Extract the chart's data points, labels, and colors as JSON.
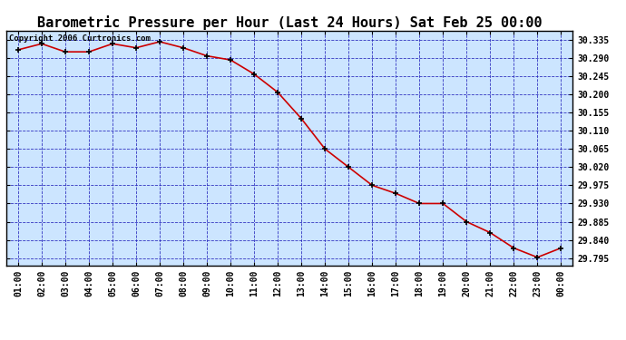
{
  "title": "Barometric Pressure per Hour (Last 24 Hours) Sat Feb 25 00:00",
  "copyright": "Copyright 2006 Curtronics.com",
  "x_labels": [
    "01:00",
    "02:00",
    "03:00",
    "04:00",
    "05:00",
    "06:00",
    "07:00",
    "08:00",
    "09:00",
    "10:00",
    "11:00",
    "12:00",
    "13:00",
    "14:00",
    "15:00",
    "16:00",
    "17:00",
    "18:00",
    "19:00",
    "20:00",
    "21:00",
    "22:00",
    "23:00",
    "00:00"
  ],
  "x_values": [
    1,
    2,
    3,
    4,
    5,
    6,
    7,
    8,
    9,
    10,
    11,
    12,
    13,
    14,
    15,
    16,
    17,
    18,
    19,
    20,
    21,
    22,
    23,
    24
  ],
  "y_values": [
    30.31,
    30.325,
    30.305,
    30.305,
    30.325,
    30.315,
    30.33,
    30.315,
    30.295,
    30.285,
    30.25,
    30.205,
    30.14,
    30.065,
    30.02,
    29.975,
    29.955,
    29.93,
    29.93,
    29.885,
    29.858,
    29.82,
    29.797,
    29.82
  ],
  "ylim_min": 29.7775,
  "ylim_max": 30.3575,
  "yticks": [
    30.335,
    30.29,
    30.245,
    30.2,
    30.155,
    30.11,
    30.065,
    30.02,
    29.975,
    29.93,
    29.885,
    29.84,
    29.795
  ],
  "line_color": "#cc0000",
  "marker_color": "#000000",
  "bg_color": "#cce5ff",
  "grid_color": "#2222bb",
  "title_fontsize": 11,
  "tick_label_fontsize": 7,
  "copyright_fontsize": 6.5
}
